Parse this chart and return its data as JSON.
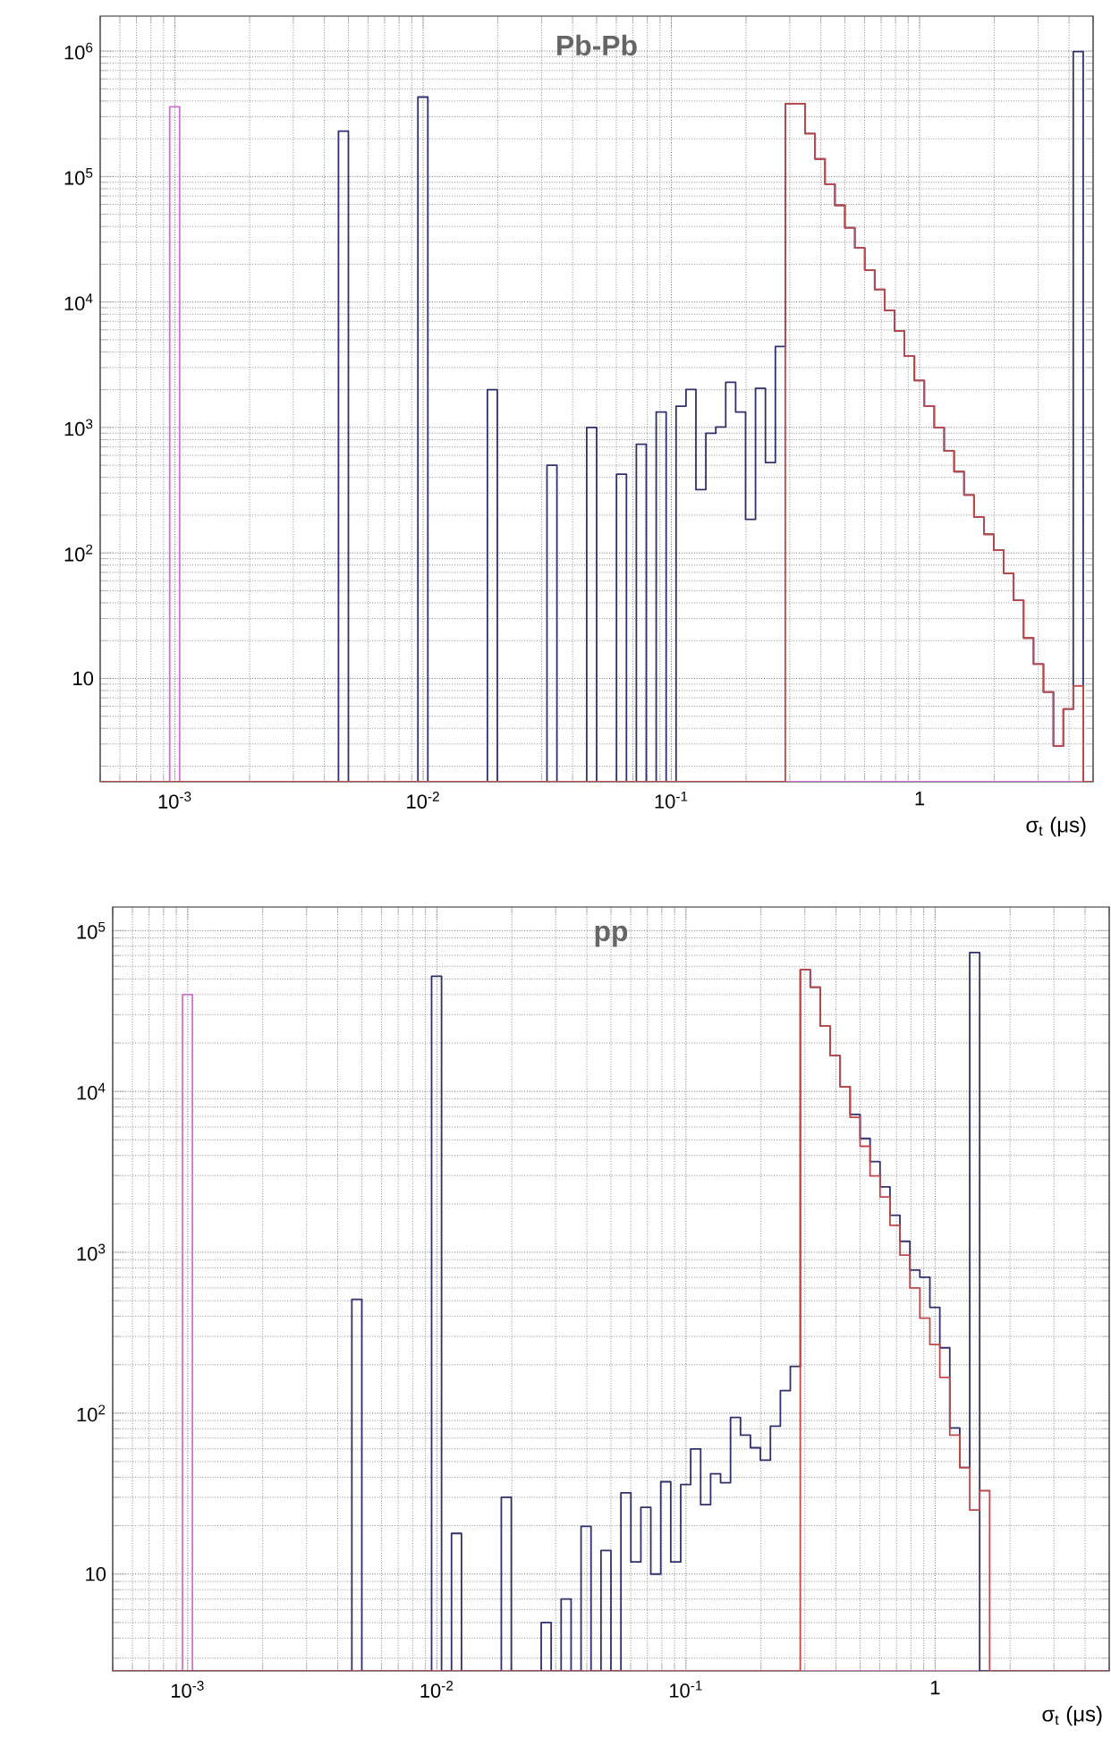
{
  "chart_data": [
    {
      "type": "histogram",
      "title": "Pb-Pb",
      "xlabel": "σ$_{t}$ (μs)",
      "log": "xy",
      "grid": true,
      "xlim": [
        0.0005,
        5
      ],
      "ylim": [
        1.5,
        1900000
      ],
      "xticks": [
        {
          "value": 0.001,
          "label": "10$^{-3}$"
        },
        {
          "value": 0.01,
          "label": "10$^{-2}$"
        },
        {
          "value": 0.1,
          "label": "10$^{-1}$"
        },
        1
      ],
      "yticks": [
        10,
        {
          "value": 100,
          "label": "10$^{2}$"
        },
        {
          "value": 1000,
          "label": "10$^{3}$"
        },
        {
          "value": 10000,
          "label": "10$^{4}$"
        },
        {
          "value": 100000,
          "label": "10$^{5}$"
        },
        {
          "value": 1000000,
          "label": "10$^{6}$"
        }
      ],
      "bins": [
        0.0005,
        0.0005483,
        0.0006012,
        0.0006592,
        0.0007227,
        0.0007924,
        0.0008689,
        0.0009528,
        0.0010447,
        0.0011455,
        0.0012559,
        0.0013771,
        0.00151,
        0.0016557,
        0.0018154,
        0.0019905,
        0.0021826,
        0.0023932,
        0.0026241,
        0.0028772,
        0.0031548,
        0.0034592,
        0.0037929,
        0.0041588,
        0.0045601,
        0.005,
        0.005483,
        0.006012,
        0.006592,
        0.007227,
        0.007924,
        0.008689,
        0.009528,
        0.010447,
        0.011455,
        0.012559,
        0.013771,
        0.0151,
        0.016557,
        0.018154,
        0.019905,
        0.021826,
        0.023932,
        0.026241,
        0.028772,
        0.031548,
        0.034592,
        0.037929,
        0.041588,
        0.045601,
        0.05,
        0.05483,
        0.06012,
        0.06592,
        0.07227,
        0.07924,
        0.08689,
        0.09528,
        0.10447,
        0.11455,
        0.12559,
        0.13771,
        0.151,
        0.16557,
        0.18154,
        0.19905,
        0.21826,
        0.23932,
        0.26241,
        0.28772,
        0.31548,
        0.34592,
        0.37929,
        0.41588,
        0.45601,
        0.5,
        0.5483,
        0.6012,
        0.6592,
        0.7227,
        0.7924,
        0.8689,
        0.9528,
        1.0447,
        1.1455,
        1.2559,
        1.3771,
        1.51,
        1.6557,
        1.8154,
        1.9905,
        2.1826,
        2.3932,
        2.6241,
        2.8772,
        3.1548,
        3.4592,
        3.7929,
        4.1588,
        4.5601,
        5
      ],
      "series": [
        {
          "color": "#d070d0",
          "values": [
            null,
            null,
            null,
            null,
            null,
            null,
            null,
            360000,
            null,
            null,
            null,
            null,
            null,
            null,
            null,
            null,
            null,
            null,
            null,
            null,
            null,
            null,
            null,
            null,
            null,
            null,
            null,
            null,
            null,
            null,
            null,
            null,
            null,
            null,
            null,
            null,
            null,
            null,
            null,
            null,
            null,
            null,
            null,
            null,
            null,
            null,
            null,
            null,
            null,
            null,
            null,
            null,
            null,
            null,
            null,
            null,
            null,
            null,
            null,
            null,
            null,
            null,
            null,
            null,
            null,
            null,
            null,
            null,
            null,
            null,
            null,
            null,
            null,
            null,
            null,
            null,
            null,
            null,
            null,
            null,
            null,
            null,
            null,
            null,
            null,
            null,
            null,
            null,
            null,
            null,
            null,
            null,
            null,
            null,
            null,
            null,
            null,
            null,
            null,
            null
          ]
        },
        {
          "color": "#30306e",
          "values": [
            null,
            null,
            null,
            null,
            null,
            null,
            null,
            null,
            null,
            null,
            null,
            null,
            null,
            null,
            null,
            null,
            null,
            null,
            null,
            null,
            null,
            null,
            null,
            null,
            230000,
            null,
            null,
            null,
            null,
            null,
            null,
            null,
            430000,
            null,
            null,
            null,
            null,
            null,
            null,
            2000,
            null,
            null,
            null,
            null,
            null,
            500,
            null,
            null,
            null,
            1000,
            null,
            null,
            425,
            null,
            735,
            null,
            1330,
            null,
            1480,
            2010,
            320,
            900,
            1010,
            2290,
            1330,
            185,
            2050,
            525,
            4420,
            380000,
            380000,
            220000,
            138000,
            87000,
            59000,
            39000,
            27000,
            18000,
            12600,
            8600,
            5900,
            3700,
            2370,
            1480,
            1000,
            650,
            445,
            290,
            193,
            141,
            105,
            69,
            42,
            21,
            13,
            7.8,
            2.9,
            5.7,
            990000,
            null
          ]
        },
        {
          "color": "#c04848",
          "values": [
            null,
            null,
            null,
            null,
            null,
            null,
            null,
            null,
            null,
            null,
            null,
            null,
            null,
            null,
            null,
            null,
            null,
            null,
            null,
            null,
            null,
            null,
            null,
            null,
            null,
            null,
            null,
            null,
            null,
            null,
            null,
            null,
            null,
            null,
            null,
            null,
            null,
            null,
            null,
            null,
            null,
            null,
            null,
            null,
            null,
            null,
            null,
            null,
            null,
            null,
            null,
            null,
            null,
            null,
            null,
            null,
            null,
            null,
            null,
            null,
            null,
            null,
            null,
            null,
            null,
            null,
            null,
            null,
            null,
            380000,
            380000,
            220000,
            138000,
            87000,
            59000,
            39000,
            27000,
            18000,
            12600,
            8600,
            5900,
            3700,
            2370,
            1480,
            1000,
            650,
            445,
            290,
            193,
            141,
            105,
            69,
            42,
            21,
            13,
            7.8,
            2.9,
            5.7,
            8.7,
            null
          ]
        }
      ]
    },
    {
      "type": "histogram",
      "title": "pp",
      "xlabel": "σ$_{t}$ (μs)",
      "log": "xy",
      "grid": true,
      "xlim": [
        0.0005,
        5
      ],
      "ylim": [
        2.5,
        140000
      ],
      "xticks": [
        {
          "value": 0.001,
          "label": "10$^{-3}$"
        },
        {
          "value": 0.01,
          "label": "10$^{-2}$"
        },
        {
          "value": 0.1,
          "label": "10$^{-1}$"
        },
        1
      ],
      "yticks": [
        10,
        {
          "value": 100,
          "label": "10$^{2}$"
        },
        {
          "value": 1000,
          "label": "10$^{3}$"
        },
        {
          "value": 10000,
          "label": "10$^{4}$"
        },
        {
          "value": 100000,
          "label": "10$^{5}$"
        }
      ],
      "bins": [
        0.0005,
        0.0005483,
        0.0006012,
        0.0006592,
        0.0007227,
        0.0007924,
        0.0008689,
        0.0009528,
        0.0010447,
        0.0011455,
        0.0012559,
        0.0013771,
        0.00151,
        0.0016557,
        0.0018154,
        0.0019905,
        0.0021826,
        0.0023932,
        0.0026241,
        0.0028772,
        0.0031548,
        0.0034592,
        0.0037929,
        0.0041588,
        0.0045601,
        0.005,
        0.005483,
        0.006012,
        0.006592,
        0.007227,
        0.007924,
        0.008689,
        0.009528,
        0.010447,
        0.011455,
        0.012559,
        0.013771,
        0.0151,
        0.016557,
        0.018154,
        0.019905,
        0.021826,
        0.023932,
        0.026241,
        0.028772,
        0.031548,
        0.034592,
        0.037929,
        0.041588,
        0.045601,
        0.05,
        0.05483,
        0.06012,
        0.06592,
        0.07227,
        0.07924,
        0.08689,
        0.09528,
        0.10447,
        0.11455,
        0.12559,
        0.13771,
        0.151,
        0.16557,
        0.18154,
        0.19905,
        0.21826,
        0.23932,
        0.26241,
        0.28772,
        0.31548,
        0.34592,
        0.37929,
        0.41588,
        0.45601,
        0.5,
        0.5483,
        0.6012,
        0.6592,
        0.7227,
        0.7924,
        0.8689,
        0.9528,
        1.0447,
        1.1455,
        1.2559,
        1.3771,
        1.51,
        1.6557,
        1.8154,
        1.9905,
        2.1826,
        2.3932,
        2.6241,
        2.8772,
        3.1548,
        3.4592,
        3.7929,
        4.1588,
        4.5601,
        5
      ],
      "series": [
        {
          "color": "#d070d0",
          "values": [
            null,
            null,
            null,
            null,
            null,
            null,
            null,
            40000,
            null,
            null,
            null,
            null,
            null,
            null,
            null,
            null,
            null,
            null,
            null,
            null,
            null,
            null,
            null,
            null,
            null,
            null,
            null,
            null,
            null,
            null,
            null,
            null,
            null,
            null,
            null,
            null,
            null,
            null,
            null,
            null,
            null,
            null,
            null,
            null,
            null,
            null,
            null,
            null,
            null,
            null,
            null,
            null,
            null,
            null,
            null,
            null,
            null,
            null,
            null,
            null,
            null,
            null,
            null,
            null,
            null,
            null,
            null,
            null,
            null,
            null,
            null,
            null,
            null,
            null,
            null,
            null,
            null,
            null,
            null,
            null,
            null,
            null,
            null,
            null,
            null,
            null,
            null,
            null,
            null,
            null,
            null,
            null,
            null,
            null,
            null,
            null,
            null,
            null,
            null,
            null
          ]
        },
        {
          "color": "#30306e",
          "values": [
            null,
            null,
            null,
            null,
            null,
            null,
            null,
            null,
            null,
            null,
            null,
            null,
            null,
            null,
            null,
            null,
            null,
            null,
            null,
            null,
            null,
            null,
            null,
            null,
            510,
            null,
            null,
            null,
            null,
            null,
            null,
            null,
            52000,
            null,
            17.9,
            null,
            null,
            null,
            null,
            30,
            null,
            null,
            null,
            5,
            null,
            7,
            null,
            19.8,
            null,
            14,
            null,
            32,
            11.9,
            26,
            10,
            37.5,
            11.9,
            36,
            60,
            27,
            42,
            37,
            94,
            73,
            61,
            51,
            83,
            138,
            195,
            57000,
            44500,
            25500,
            16700,
            10700,
            7200,
            5100,
            3660,
            2550,
            1700,
            1170,
            775,
            700,
            455,
            255,
            81,
            46,
            73000,
            null,
            null,
            null,
            null,
            null,
            null,
            null,
            null,
            null,
            null,
            null,
            null,
            null
          ]
        },
        {
          "color": "#c04848",
          "values": [
            null,
            null,
            null,
            null,
            null,
            null,
            null,
            null,
            null,
            null,
            null,
            null,
            null,
            null,
            null,
            null,
            null,
            null,
            null,
            null,
            null,
            null,
            null,
            null,
            null,
            null,
            null,
            null,
            null,
            null,
            null,
            null,
            null,
            null,
            null,
            null,
            null,
            null,
            null,
            null,
            null,
            null,
            null,
            null,
            null,
            null,
            null,
            null,
            null,
            null,
            null,
            null,
            null,
            null,
            null,
            null,
            null,
            null,
            null,
            null,
            null,
            null,
            null,
            null,
            null,
            null,
            null,
            null,
            null,
            57000,
            44500,
            25500,
            16700,
            10700,
            6900,
            4560,
            2980,
            2210,
            1470,
            960,
            600,
            390,
            267,
            167,
            73,
            46,
            25,
            33,
            null,
            null,
            null,
            null,
            null,
            null,
            null,
            null,
            null,
            null,
            null,
            null
          ]
        }
      ]
    }
  ]
}
